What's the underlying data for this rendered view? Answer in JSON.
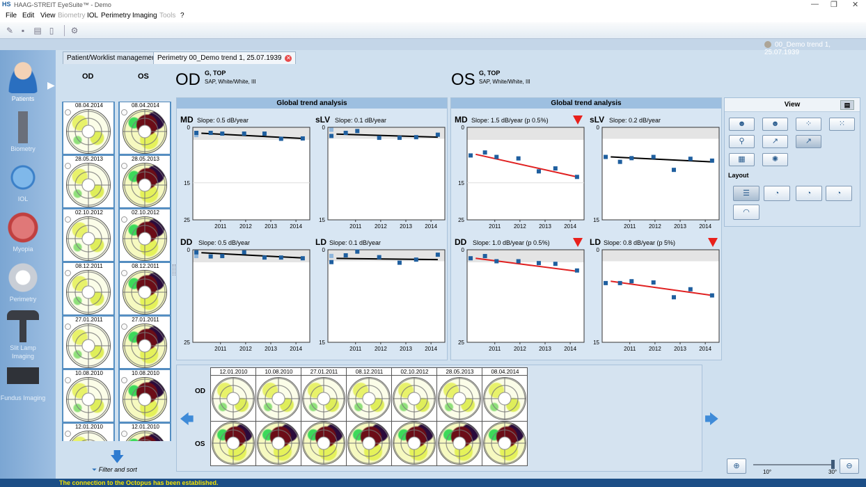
{
  "window": {
    "title": "HAAG-STREIT EyeSuite™    -  Demo",
    "logo": "HS",
    "controls": [
      "—",
      "❐",
      "✕"
    ]
  },
  "menu": [
    "File",
    "Edit",
    "View",
    "Biometry",
    "IOL",
    "Perimetry",
    "Imaging",
    "Tools",
    "?"
  ],
  "menu_disabled": [
    "Biometry",
    "Tools"
  ],
  "toolbar": {
    "icons": [
      "open-icon",
      "save-icon",
      "print-icon",
      "delete-icon",
      "settings-icon"
    ]
  },
  "patient_header": "00_Demo trend 1, 25.07.1939",
  "sidebar": {
    "items": [
      {
        "label": "Patients",
        "icon": "patient-icon",
        "active": true
      },
      {
        "label": "Biometry",
        "icon": "biometry-icon"
      },
      {
        "label": "IOL",
        "icon": "iol-icon"
      },
      {
        "label": "Myopia",
        "icon": "myopia-icon"
      },
      {
        "label": "Perimetry",
        "icon": "perimetry-icon"
      },
      {
        "label": "Slit Lamp Imaging",
        "icon": "slit-lamp-icon"
      },
      {
        "label": "Fundus Imaging",
        "icon": "fundus-icon"
      }
    ]
  },
  "tabs": [
    {
      "label": "Patient/Worklist management"
    },
    {
      "label": "Perimetry 00_Demo trend 1, 25.07.1939",
      "closable": true
    }
  ],
  "exam_list": {
    "od_header": "OD",
    "os_header": "OS",
    "dates": [
      "08.04.2014",
      "28.05.2013",
      "02.10.2012",
      "08.12.2011",
      "27.01.2011",
      "10.08.2010",
      "12.01.2010"
    ],
    "filter_label": "Filter and sort"
  },
  "eyes": {
    "od": {
      "label": "OD",
      "program": "G, TOP",
      "sub": "SAP, White/White, III"
    },
    "os": {
      "label": "OS",
      "program": "G, TOP",
      "sub": "SAP, White/White, III"
    }
  },
  "panels": {
    "od": {
      "title": "Global trend analysis",
      "plots": [
        {
          "key": "MD",
          "slope": "Slope: 0.5 dB/year",
          "warn": false
        },
        {
          "key": "sLV",
          "slope": "Slope: 0.1 dB/year",
          "warn": false
        },
        {
          "key": "DD",
          "slope": "Slope: 0.5 dB/year",
          "warn": false
        },
        {
          "key": "LD",
          "slope": "Slope: 0.1 dB/year",
          "warn": false
        }
      ]
    },
    "os": {
      "title": "Global trend analysis",
      "plots": [
        {
          "key": "MD",
          "slope": "Slope: 1.5 dB/year (p 0.5%)",
          "warn": true
        },
        {
          "key": "sLV",
          "slope": "Slope: 0.2 dB/year",
          "warn": false
        },
        {
          "key": "DD",
          "slope": "Slope: 1.0 dB/year (p 0.5%)",
          "warn": true
        },
        {
          "key": "LD",
          "slope": "Slope: 0.8 dB/year (p 5%)",
          "warn": true
        }
      ]
    }
  },
  "chart_data": [
    {
      "id": "od-md",
      "type": "scatter",
      "title": "MD",
      "ylim": [
        0,
        25
      ],
      "y_ticks": [
        0,
        15,
        25
      ],
      "x_ticks": [
        2011,
        2012,
        2013,
        2014
      ],
      "x": [
        2010.04,
        2010.61,
        2011.07,
        2011.94,
        2012.75,
        2013.41,
        2014.27
      ],
      "y": [
        1.5,
        1.5,
        1.7,
        1.7,
        1.7,
        3.1,
        3.0
      ],
      "baseline": 2.1,
      "trend": [
        1.6,
        3.0
      ],
      "trend_color": "#000000"
    },
    {
      "id": "od-slv",
      "type": "scatter",
      "title": "sLV",
      "ylim": [
        0,
        15
      ],
      "y_ticks": [
        0,
        15
      ],
      "x_ticks": [
        2011,
        2012,
        2013,
        2014
      ],
      "x": [
        2010.04,
        2010.61,
        2011.07,
        2011.94,
        2012.75,
        2013.41,
        2014.27
      ],
      "y": [
        1.4,
        0.9,
        0.6,
        1.7,
        1.7,
        1.6,
        1.2
      ],
      "baseline": 0.4,
      "trend": [
        1.1,
        1.6
      ],
      "trend_color": "#000000"
    },
    {
      "id": "od-dd",
      "type": "scatter",
      "title": "DD",
      "ylim": [
        0,
        25
      ],
      "y_ticks": [
        0,
        25
      ],
      "x_ticks": [
        2011,
        2012,
        2013,
        2014
      ],
      "x": [
        2010.04,
        2010.61,
        2011.07,
        2011.94,
        2012.75,
        2013.41,
        2014.27
      ],
      "y": [
        0.7,
        1.8,
        1.7,
        0.7,
        2.1,
        2.1,
        2.3
      ],
      "baseline": 1.7,
      "trend": [
        0.8,
        2.2
      ],
      "trend_color": "#000000"
    },
    {
      "id": "od-ld",
      "type": "scatter",
      "title": "LD",
      "ylim": [
        0,
        15
      ],
      "y_ticks": [
        0,
        15
      ],
      "x_ticks": [
        2011,
        2012,
        2013,
        2014
      ],
      "x": [
        2010.04,
        2010.61,
        2011.07,
        2011.94,
        2012.75,
        2013.41,
        2014.27
      ],
      "y": [
        2.0,
        0.9,
        0.3,
        1.2,
        2.1,
        1.6,
        0.8
      ],
      "baseline": 1.0,
      "trend": [
        1.4,
        1.6
      ],
      "trend_color": "#000000"
    },
    {
      "id": "os-md",
      "type": "scatter",
      "title": "MD",
      "ylim": [
        0,
        25
      ],
      "y_ticks": [
        0,
        15,
        25
      ],
      "x_ticks": [
        2011,
        2012,
        2013,
        2014
      ],
      "x": [
        2010.04,
        2010.61,
        2011.07,
        2011.94,
        2012.75,
        2013.41,
        2014.27
      ],
      "y": [
        7.6,
        6.8,
        8.0,
        8.4,
        11.9,
        11.1,
        13.4
      ],
      "trend": [
        7.3,
        13.4
      ],
      "trend_color": "#e02020"
    },
    {
      "id": "os-slv",
      "type": "scatter",
      "title": "sLV",
      "ylim": [
        0,
        15
      ],
      "y_ticks": [
        0,
        15
      ],
      "x_ticks": [
        2011,
        2012,
        2013,
        2014
      ],
      "x": [
        2010.04,
        2010.61,
        2011.07,
        2011.94,
        2012.75,
        2013.41,
        2014.27
      ],
      "y": [
        4.8,
        5.6,
        5.0,
        4.8,
        6.9,
        5.1,
        5.4
      ],
      "trend": [
        4.8,
        5.6
      ],
      "trend_color": "#000000"
    },
    {
      "id": "os-dd",
      "type": "scatter",
      "title": "DD",
      "ylim": [
        0,
        25
      ],
      "y_ticks": [
        0,
        25
      ],
      "x_ticks": [
        2011,
        2012,
        2013,
        2014
      ],
      "x": [
        2010.04,
        2010.61,
        2011.07,
        2011.94,
        2012.75,
        2013.41,
        2014.27
      ],
      "y": [
        2.3,
        1.7,
        3.1,
        3.1,
        3.6,
        3.8,
        5.6
      ],
      "trend": [
        2.3,
        5.8
      ],
      "trend_color": "#e02020"
    },
    {
      "id": "os-ld",
      "type": "scatter",
      "title": "LD",
      "ylim": [
        0,
        15
      ],
      "y_ticks": [
        0,
        15
      ],
      "x_ticks": [
        2011,
        2012,
        2013,
        2014
      ],
      "x": [
        2010.04,
        2010.61,
        2011.07,
        2011.94,
        2012.75,
        2013.41,
        2014.27
      ],
      "y": [
        5.4,
        5.4,
        5.1,
        5.3,
        7.7,
        6.4,
        7.4
      ],
      "trend": [
        5.1,
        7.4
      ],
      "trend_color": "#e02020"
    }
  ],
  "view_panel": {
    "title": "View",
    "layout_label": "Layout"
  },
  "timeline": {
    "dates": [
      "12.01.2010",
      "10.08.2010",
      "27.01.2011",
      "08.12.2011",
      "02.10.2012",
      "28.05.2013",
      "08.04.2014"
    ],
    "od_label": "OD",
    "os_label": "OS"
  },
  "zoom": {
    "min_label": "10°",
    "max_label": "30°"
  },
  "status": "The connection to the Octopus has been established."
}
